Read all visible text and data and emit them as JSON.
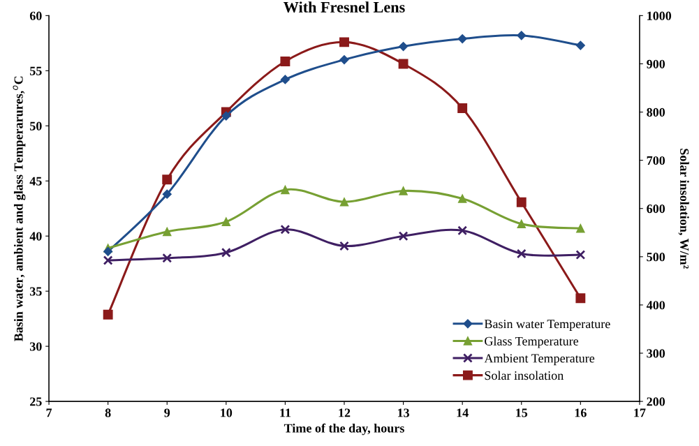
{
  "chart_data": {
    "type": "line",
    "title": "With Fresnel Lens",
    "xlabel": "Time of the day, hours",
    "ylabel": "Basin water, ambient and glass Temperarures,$^{o}$C",
    "y2label": "Solar insolation, W/m²",
    "x": [
      8,
      9,
      10,
      11,
      12,
      13,
      14,
      15,
      16
    ],
    "xlim": [
      7,
      17
    ],
    "xticks": [
      7,
      8,
      9,
      10,
      11,
      12,
      13,
      14,
      15,
      16,
      17
    ],
    "ylim": [
      25,
      60
    ],
    "yticks": [
      25,
      30,
      35,
      40,
      45,
      50,
      55,
      60
    ],
    "y2lim": [
      200,
      1000
    ],
    "y2ticks": [
      200,
      300,
      400,
      500,
      600,
      700,
      800,
      900,
      1000
    ],
    "grid": false,
    "legend": "bottom right",
    "series": [
      {
        "name": "Basin water Temperature",
        "color": "#1f4e8c",
        "marker": "diamond",
        "values": [
          38.6,
          43.8,
          50.9,
          54.2,
          56.0,
          57.2,
          57.9,
          58.2,
          57.3
        ]
      },
      {
        "name": "Glass Temperature",
        "color": "#77a033",
        "marker": "triangle",
        "values": [
          38.9,
          40.4,
          41.3,
          44.2,
          43.1,
          44.1,
          43.4,
          41.1,
          40.7
        ]
      },
      {
        "name": "Ambient Temperature",
        "color": "#3f1f63",
        "marker": "cross",
        "values": [
          37.8,
          38.0,
          38.5,
          40.6,
          39.1,
          40.0,
          40.5,
          38.4,
          38.3
        ]
      },
      {
        "name": "Solar insolation",
        "color": "#8b1a1a",
        "marker": "square",
        "axis": "y2",
        "values": [
          380,
          660,
          800,
          905,
          945,
          900,
          808,
          613,
          414
        ]
      }
    ]
  }
}
